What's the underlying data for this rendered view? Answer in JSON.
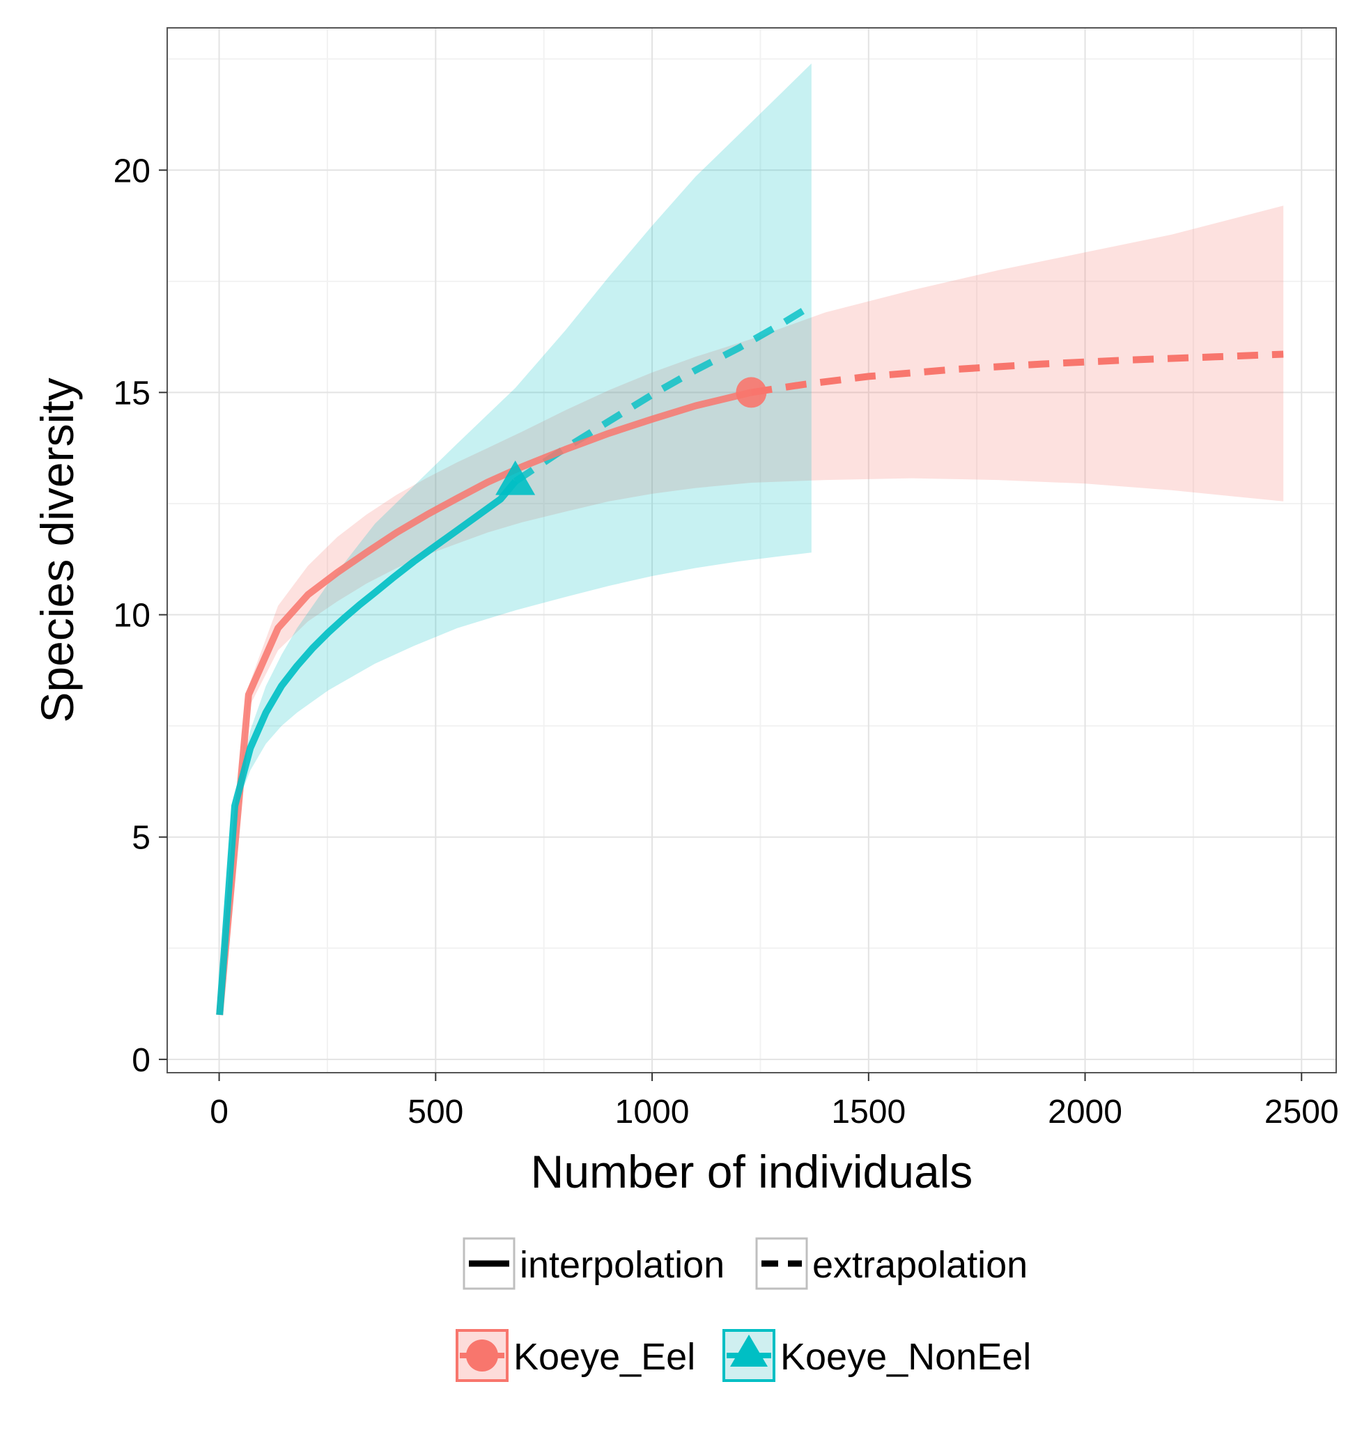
{
  "chart_data": {
    "type": "line",
    "title": "",
    "xlabel": "Number of individuals",
    "ylabel": "Species diversity",
    "xlim": [
      -120,
      2580
    ],
    "ylim": [
      -0.3,
      23.2
    ],
    "x_ticks": [
      0,
      500,
      1000,
      1500,
      2000,
      2500
    ],
    "x_tick_labels": [
      "0",
      "500",
      "1000",
      "1500",
      "2000",
      "2500"
    ],
    "y_ticks": [
      0,
      5,
      10,
      15,
      20
    ],
    "y_tick_labels": [
      "0",
      "5",
      "10",
      "15",
      "20"
    ],
    "x_minor": [
      250,
      750,
      1250,
      1750,
      2250
    ],
    "y_minor": [
      2.5,
      7.5,
      12.5,
      17.5,
      22.5
    ],
    "grid": true,
    "legend_placement": "bottom",
    "method_legend": {
      "interpolation": "interpolation",
      "extrapolation": "extrapolation"
    },
    "series": [
      {
        "name": "Koeye_Eel",
        "color": "#F8766D",
        "marker": "circle",
        "observed": {
          "x": 1229,
          "y": 15.0
        },
        "interpolated": [
          [
            1,
            1.0
          ],
          [
            68,
            8.2
          ],
          [
            136,
            9.7
          ],
          [
            205,
            10.45
          ],
          [
            273,
            10.95
          ],
          [
            340,
            11.4
          ],
          [
            410,
            11.85
          ],
          [
            480,
            12.25
          ],
          [
            550,
            12.62
          ],
          [
            620,
            12.98
          ],
          [
            700,
            13.33
          ],
          [
            800,
            13.72
          ],
          [
            900,
            14.08
          ],
          [
            1000,
            14.4
          ],
          [
            1100,
            14.7
          ],
          [
            1229,
            15.0
          ]
        ],
        "extrapolated": [
          [
            1229,
            15.0
          ],
          [
            1350,
            15.18
          ],
          [
            1500,
            15.36
          ],
          [
            1700,
            15.52
          ],
          [
            1900,
            15.64
          ],
          [
            2100,
            15.73
          ],
          [
            2300,
            15.8
          ],
          [
            2458,
            15.86
          ]
        ],
        "ci_upper": [
          [
            1,
            1.0
          ],
          [
            68,
            8.4
          ],
          [
            136,
            10.2
          ],
          [
            205,
            11.1
          ],
          [
            273,
            11.75
          ],
          [
            340,
            12.25
          ],
          [
            410,
            12.7
          ],
          [
            480,
            13.08
          ],
          [
            550,
            13.43
          ],
          [
            620,
            13.75
          ],
          [
            700,
            14.12
          ],
          [
            800,
            14.6
          ],
          [
            900,
            15.05
          ],
          [
            1000,
            15.45
          ],
          [
            1100,
            15.8
          ],
          [
            1229,
            16.2
          ],
          [
            1400,
            16.8
          ],
          [
            1600,
            17.3
          ],
          [
            1800,
            17.75
          ],
          [
            2000,
            18.15
          ],
          [
            2200,
            18.55
          ],
          [
            2458,
            19.2
          ]
        ],
        "ci_lower": [
          [
            1,
            1.0
          ],
          [
            68,
            7.9
          ],
          [
            136,
            9.2
          ],
          [
            205,
            9.85
          ],
          [
            273,
            10.3
          ],
          [
            340,
            10.7
          ],
          [
            410,
            11.05
          ],
          [
            480,
            11.35
          ],
          [
            550,
            11.6
          ],
          [
            620,
            11.85
          ],
          [
            700,
            12.08
          ],
          [
            800,
            12.32
          ],
          [
            900,
            12.55
          ],
          [
            1000,
            12.72
          ],
          [
            1100,
            12.85
          ],
          [
            1229,
            12.97
          ],
          [
            1400,
            13.03
          ],
          [
            1600,
            13.07
          ],
          [
            1800,
            13.03
          ],
          [
            2000,
            12.95
          ],
          [
            2200,
            12.8
          ],
          [
            2458,
            12.55
          ]
        ]
      },
      {
        "name": "Koeye_NonEel",
        "color": "#00BFC4",
        "marker": "triangle",
        "observed": {
          "x": 684,
          "y": 13.0
        },
        "interpolated": [
          [
            1,
            1.0
          ],
          [
            36,
            5.7
          ],
          [
            72,
            7.0
          ],
          [
            108,
            7.8
          ],
          [
            144,
            8.4
          ],
          [
            180,
            8.85
          ],
          [
            216,
            9.25
          ],
          [
            252,
            9.6
          ],
          [
            288,
            9.92
          ],
          [
            324,
            10.22
          ],
          [
            360,
            10.5
          ],
          [
            400,
            10.82
          ],
          [
            450,
            11.2
          ],
          [
            500,
            11.55
          ],
          [
            550,
            11.9
          ],
          [
            600,
            12.25
          ],
          [
            650,
            12.6
          ],
          [
            684,
            13.0
          ]
        ],
        "extrapolated": [
          [
            684,
            13.0
          ],
          [
            800,
            13.75
          ],
          [
            900,
            14.35
          ],
          [
            1000,
            14.95
          ],
          [
            1100,
            15.5
          ],
          [
            1200,
            16.0
          ],
          [
            1300,
            16.55
          ],
          [
            1368,
            16.95
          ]
        ],
        "ci_upper": [
          [
            1,
            1.0
          ],
          [
            36,
            5.8
          ],
          [
            72,
            7.4
          ],
          [
            108,
            8.4
          ],
          [
            144,
            9.1
          ],
          [
            180,
            9.7
          ],
          [
            216,
            10.2
          ],
          [
            252,
            10.7
          ],
          [
            288,
            11.15
          ],
          [
            324,
            11.6
          ],
          [
            360,
            12.05
          ],
          [
            450,
            12.9
          ],
          [
            550,
            13.85
          ],
          [
            684,
            15.1
          ],
          [
            800,
            16.4
          ],
          [
            900,
            17.6
          ],
          [
            1000,
            18.75
          ],
          [
            1100,
            19.85
          ],
          [
            1200,
            20.8
          ],
          [
            1300,
            21.75
          ],
          [
            1368,
            22.4
          ]
        ],
        "ci_lower": [
          [
            1,
            1.0
          ],
          [
            36,
            5.6
          ],
          [
            72,
            6.5
          ],
          [
            108,
            7.1
          ],
          [
            144,
            7.5
          ],
          [
            180,
            7.8
          ],
          [
            216,
            8.05
          ],
          [
            252,
            8.3
          ],
          [
            288,
            8.5
          ],
          [
            324,
            8.7
          ],
          [
            360,
            8.9
          ],
          [
            450,
            9.3
          ],
          [
            550,
            9.7
          ],
          [
            684,
            10.1
          ],
          [
            800,
            10.4
          ],
          [
            900,
            10.65
          ],
          [
            1000,
            10.87
          ],
          [
            1100,
            11.05
          ],
          [
            1200,
            11.2
          ],
          [
            1300,
            11.32
          ],
          [
            1368,
            11.4
          ]
        ]
      }
    ]
  }
}
